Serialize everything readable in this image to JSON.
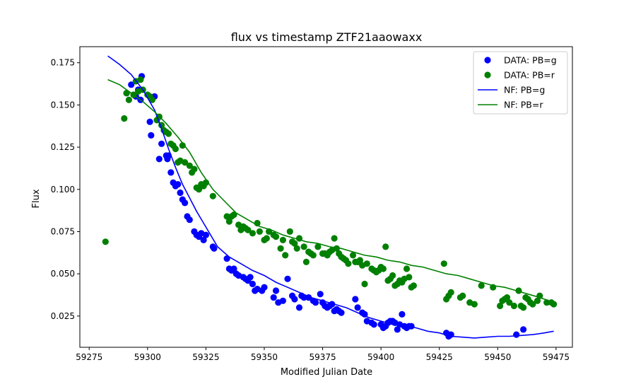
{
  "chart_data": {
    "type": "scatter",
    "title": "flux vs timestamp ZTF21aaowaxx",
    "xlabel": "Modified Julian Date",
    "ylabel": "Flux",
    "xlim": [
      59271,
      59482
    ],
    "ylim": [
      0.0065,
      0.1845
    ],
    "xticks": [
      59275,
      59300,
      59325,
      59350,
      59375,
      59400,
      59425,
      59450,
      59475
    ],
    "xtick_labels": [
      "59275",
      "59300",
      "59325",
      "59350",
      "59375",
      "59400",
      "59425",
      "59450",
      "59475"
    ],
    "yticks": [
      0.025,
      0.05,
      0.075,
      0.1,
      0.125,
      0.15,
      0.175
    ],
    "ytick_labels": [
      "0.025",
      "0.050",
      "0.075",
      "0.100",
      "0.125",
      "0.150",
      "0.175"
    ],
    "grid": false,
    "legend_position": "top-right",
    "colors": {
      "g": "#0000ff",
      "r": "#008000"
    },
    "series": [
      {
        "name": "DATA: PB=g",
        "kind": "scatter",
        "color": "#0000ff",
        "x": [
          59291,
          59293,
          59295,
          59296,
          59297,
          59297.5,
          59301,
          59301.5,
          59303,
          59305,
          59306,
          59308,
          59308.5,
          59309,
          59310,
          59311,
          59312,
          59313,
          59314,
          59315,
          59316,
          59317,
          59318,
          59320,
          59321,
          59322,
          59323,
          59324,
          59325,
          59328,
          59328.5,
          59334,
          59335,
          59336,
          59337,
          59338,
          59339,
          59341,
          59342,
          59343,
          59344,
          59345,
          59346,
          59347,
          59349,
          59350,
          59354,
          59355,
          59356,
          59358,
          59360,
          59362,
          59363,
          59365,
          59366,
          59367,
          59369,
          59371,
          59372,
          59374,
          59375,
          59376,
          59377,
          59378,
          59379,
          59380,
          59381,
          59382,
          59383,
          59389,
          59390,
          59392,
          59393,
          59394,
          59396,
          59397,
          59400,
          59401,
          59402,
          59403,
          59404,
          59405,
          59406,
          59407,
          59408,
          59409,
          59410,
          59411,
          59412,
          59413,
          59428,
          59429,
          59430,
          59458,
          59461
        ],
        "y": [
          0.157,
          0.162,
          0.155,
          0.159,
          0.153,
          0.167,
          0.14,
          0.132,
          0.155,
          0.118,
          0.127,
          0.12,
          0.118,
          0.12,
          0.11,
          0.104,
          0.102,
          0.103,
          0.098,
          0.094,
          0.092,
          0.084,
          0.082,
          0.075,
          0.073,
          0.072,
          0.074,
          0.07,
          0.073,
          0.066,
          0.065,
          0.059,
          0.053,
          0.052,
          0.053,
          0.05,
          0.049,
          0.048,
          0.047,
          0.046,
          0.048,
          0.044,
          0.04,
          0.041,
          0.04,
          0.042,
          0.036,
          0.04,
          0.033,
          0.034,
          0.047,
          0.037,
          0.035,
          0.03,
          0.037,
          0.036,
          0.036,
          0.034,
          0.033,
          0.038,
          0.033,
          0.031,
          0.03,
          0.031,
          0.032,
          0.028,
          0.029,
          0.028,
          0.027,
          0.035,
          0.03,
          0.027,
          0.026,
          0.022,
          0.021,
          0.02,
          0.02,
          0.018,
          0.019,
          0.021,
          0.022,
          0.022,
          0.021,
          0.017,
          0.02,
          0.026,
          0.019,
          0.018,
          0.019,
          0.019,
          0.015,
          0.013,
          0.014,
          0.014,
          0.017
        ]
      },
      {
        "name": "DATA: PB=r",
        "kind": "scatter",
        "color": "#008000",
        "x": [
          59282,
          59290,
          59291,
          59292,
          59294,
          59295,
          59296,
          59297,
          59298,
          59300,
          59301,
          59302,
          59304,
          59305,
          59306,
          59307,
          59308,
          59309,
          59310,
          59311,
          59312,
          59313,
          59314,
          59315,
          59316,
          59318,
          59319,
          59320,
          59321,
          59322,
          59323,
          59324,
          59325,
          59328,
          59334,
          59335,
          59336,
          59337,
          59339,
          59340,
          59341,
          59342,
          59343,
          59345,
          59347,
          59348,
          59350,
          59351,
          59352,
          59354,
          59355,
          59357,
          59358,
          59359,
          59361,
          59362,
          59363,
          59364,
          59365,
          59367,
          59368,
          59369,
          59370,
          59371,
          59373,
          59375,
          59376,
          59377,
          59378,
          59379,
          59380,
          59381,
          59382,
          59383,
          59384,
          59385,
          59386,
          59388,
          59389,
          59390,
          59391,
          59392,
          59393,
          59394,
          59396,
          59397,
          59398,
          59399,
          59400,
          59401,
          59402,
          59403,
          59404,
          59405,
          59406,
          59407,
          59408,
          59409,
          59410,
          59411,
          59412,
          59413,
          59414,
          59427,
          59428,
          59429,
          59430,
          59434,
          59435,
          59438,
          59440,
          59443,
          59448,
          59451,
          59452,
          59453,
          59454,
          59455,
          59457,
          59459,
          59460,
          59461,
          59462,
          59463,
          59464,
          59465,
          59467,
          59468,
          59471,
          59473,
          59474
        ],
        "y": [
          0.069,
          0.142,
          0.157,
          0.153,
          0.156,
          0.164,
          0.158,
          0.165,
          0.159,
          0.156,
          0.155,
          0.153,
          0.141,
          0.143,
          0.138,
          0.135,
          0.134,
          0.133,
          0.127,
          0.126,
          0.124,
          0.116,
          0.117,
          0.126,
          0.116,
          0.114,
          0.11,
          0.112,
          0.101,
          0.1,
          0.103,
          0.102,
          0.104,
          0.096,
          0.084,
          0.081,
          0.084,
          0.085,
          0.079,
          0.076,
          0.078,
          0.077,
          0.076,
          0.074,
          0.08,
          0.075,
          0.07,
          0.071,
          0.075,
          0.073,
          0.072,
          0.065,
          0.07,
          0.061,
          0.075,
          0.069,
          0.068,
          0.065,
          0.071,
          0.066,
          0.057,
          0.063,
          0.062,
          0.061,
          0.066,
          0.062,
          0.062,
          0.061,
          0.063,
          0.064,
          0.071,
          0.065,
          0.062,
          0.06,
          0.059,
          0.058,
          0.056,
          0.061,
          0.057,
          0.057,
          0.058,
          0.055,
          0.044,
          0.056,
          0.053,
          0.052,
          0.051,
          0.052,
          0.054,
          0.053,
          0.066,
          0.046,
          0.047,
          0.049,
          0.043,
          0.044,
          0.046,
          0.045,
          0.047,
          0.053,
          0.048,
          0.042,
          0.043,
          0.056,
          0.035,
          0.037,
          0.039,
          0.036,
          0.037,
          0.033,
          0.032,
          0.043,
          0.042,
          0.031,
          0.034,
          0.035,
          0.036,
          0.033,
          0.031,
          0.04,
          0.031,
          0.03,
          0.036,
          0.035,
          0.033,
          0.032,
          0.034,
          0.037,
          0.033,
          0.033,
          0.032
        ]
      },
      {
        "name": "NF: PB=g",
        "kind": "line",
        "color": "#0000ff",
        "x": [
          59283,
          59288,
          59293,
          59298,
          59303,
          59306,
          59309,
          59312,
          59315,
          59318,
          59321,
          59324,
          59327,
          59330,
          59335,
          59340,
          59345,
          59350,
          59355,
          59360,
          59365,
          59370,
          59375,
          59380,
          59385,
          59390,
          59395,
          59400,
          59405,
          59410,
          59415,
          59420,
          59425,
          59430,
          59435,
          59440,
          59445,
          59450,
          59455,
          59460,
          59465,
          59470,
          59474
        ],
        "y": [
          0.179,
          0.174,
          0.168,
          0.159,
          0.147,
          0.136,
          0.124,
          0.113,
          0.103,
          0.095,
          0.087,
          0.08,
          0.073,
          0.066,
          0.06,
          0.056,
          0.052,
          0.049,
          0.045,
          0.042,
          0.039,
          0.036,
          0.034,
          0.032,
          0.03,
          0.027,
          0.024,
          0.022,
          0.02,
          0.019,
          0.018,
          0.016,
          0.015,
          0.013,
          0.0125,
          0.012,
          0.0125,
          0.013,
          0.013,
          0.0135,
          0.014,
          0.015,
          0.016
        ]
      },
      {
        "name": "NF: PB=r",
        "kind": "line",
        "color": "#008000",
        "x": [
          59283,
          59288,
          59293,
          59298,
          59303,
          59308,
          59313,
          59318,
          59323,
          59328,
          59333,
          59338,
          59343,
          59348,
          59353,
          59358,
          59363,
          59368,
          59373,
          59378,
          59383,
          59388,
          59393,
          59398,
          59403,
          59408,
          59413,
          59418,
          59423,
          59428,
          59433,
          59438,
          59443,
          59448,
          59453,
          59458,
          59463,
          59468,
          59474
        ],
        "y": [
          0.165,
          0.162,
          0.157,
          0.152,
          0.146,
          0.139,
          0.131,
          0.122,
          0.11,
          0.1,
          0.093,
          0.086,
          0.082,
          0.078,
          0.076,
          0.073,
          0.071,
          0.069,
          0.068,
          0.066,
          0.065,
          0.063,
          0.061,
          0.06,
          0.058,
          0.057,
          0.055,
          0.054,
          0.052,
          0.05,
          0.049,
          0.047,
          0.045,
          0.043,
          0.042,
          0.04,
          0.038,
          0.036,
          0.033
        ]
      }
    ]
  }
}
